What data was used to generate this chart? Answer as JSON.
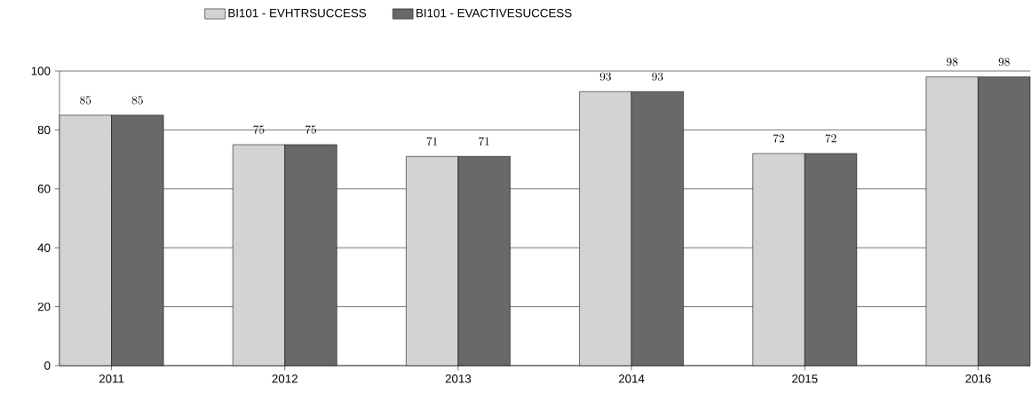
{
  "chart_data": {
    "type": "bar",
    "categories": [
      "2011",
      "2012",
      "2013",
      "2014",
      "2015",
      "2016"
    ],
    "series": [
      {
        "name": "BI101 - EVHTRSUCCESS",
        "color": "#d3d3d3",
        "values": [
          85,
          75,
          71,
          93,
          72,
          98
        ]
      },
      {
        "name": "BI101 - EVACTIVESUCCESS",
        "color": "#696969",
        "values": [
          85,
          75,
          71,
          93,
          72,
          98
        ]
      }
    ],
    "ylim": [
      0,
      100
    ],
    "yticks": [
      0,
      20,
      40,
      60,
      80,
      100
    ],
    "grid": "y",
    "legend": "top",
    "data_labels": true
  }
}
